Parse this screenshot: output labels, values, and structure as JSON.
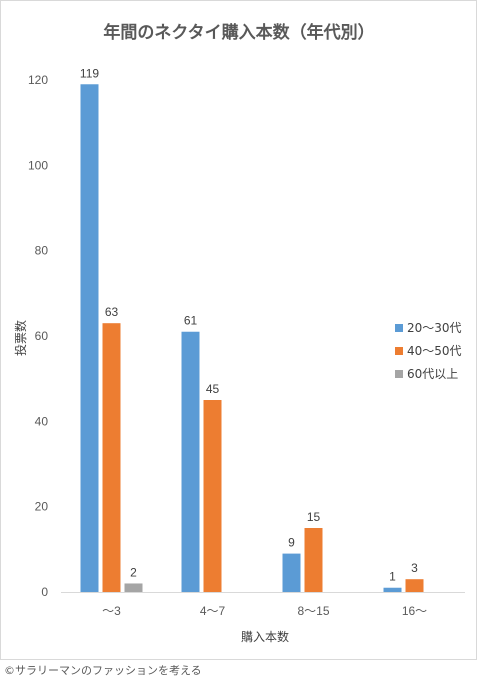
{
  "chart_data": {
    "type": "bar",
    "title": "年間のネクタイ購入本数（年代別）",
    "xlabel": "購入本数",
    "ylabel": "投票数",
    "categories": [
      "〜3",
      "4〜7",
      "8〜15",
      "16〜"
    ],
    "series": [
      {
        "name": "20〜30代",
        "color": "#5b9bd5",
        "values": [
          119,
          61,
          9,
          1
        ]
      },
      {
        "name": "40〜50代",
        "color": "#ed7d31",
        "values": [
          63,
          45,
          15,
          3
        ]
      },
      {
        "name": "60代以上",
        "color": "#a5a5a5",
        "values": [
          2,
          null,
          null,
          null
        ]
      }
    ],
    "ylim": [
      0,
      120
    ],
    "yticks": [
      0,
      20,
      40,
      60,
      80,
      100,
      120
    ],
    "grid": false,
    "legend": "right",
    "data_labels": true
  },
  "credit": "©サラリーマンのファッションを考える"
}
